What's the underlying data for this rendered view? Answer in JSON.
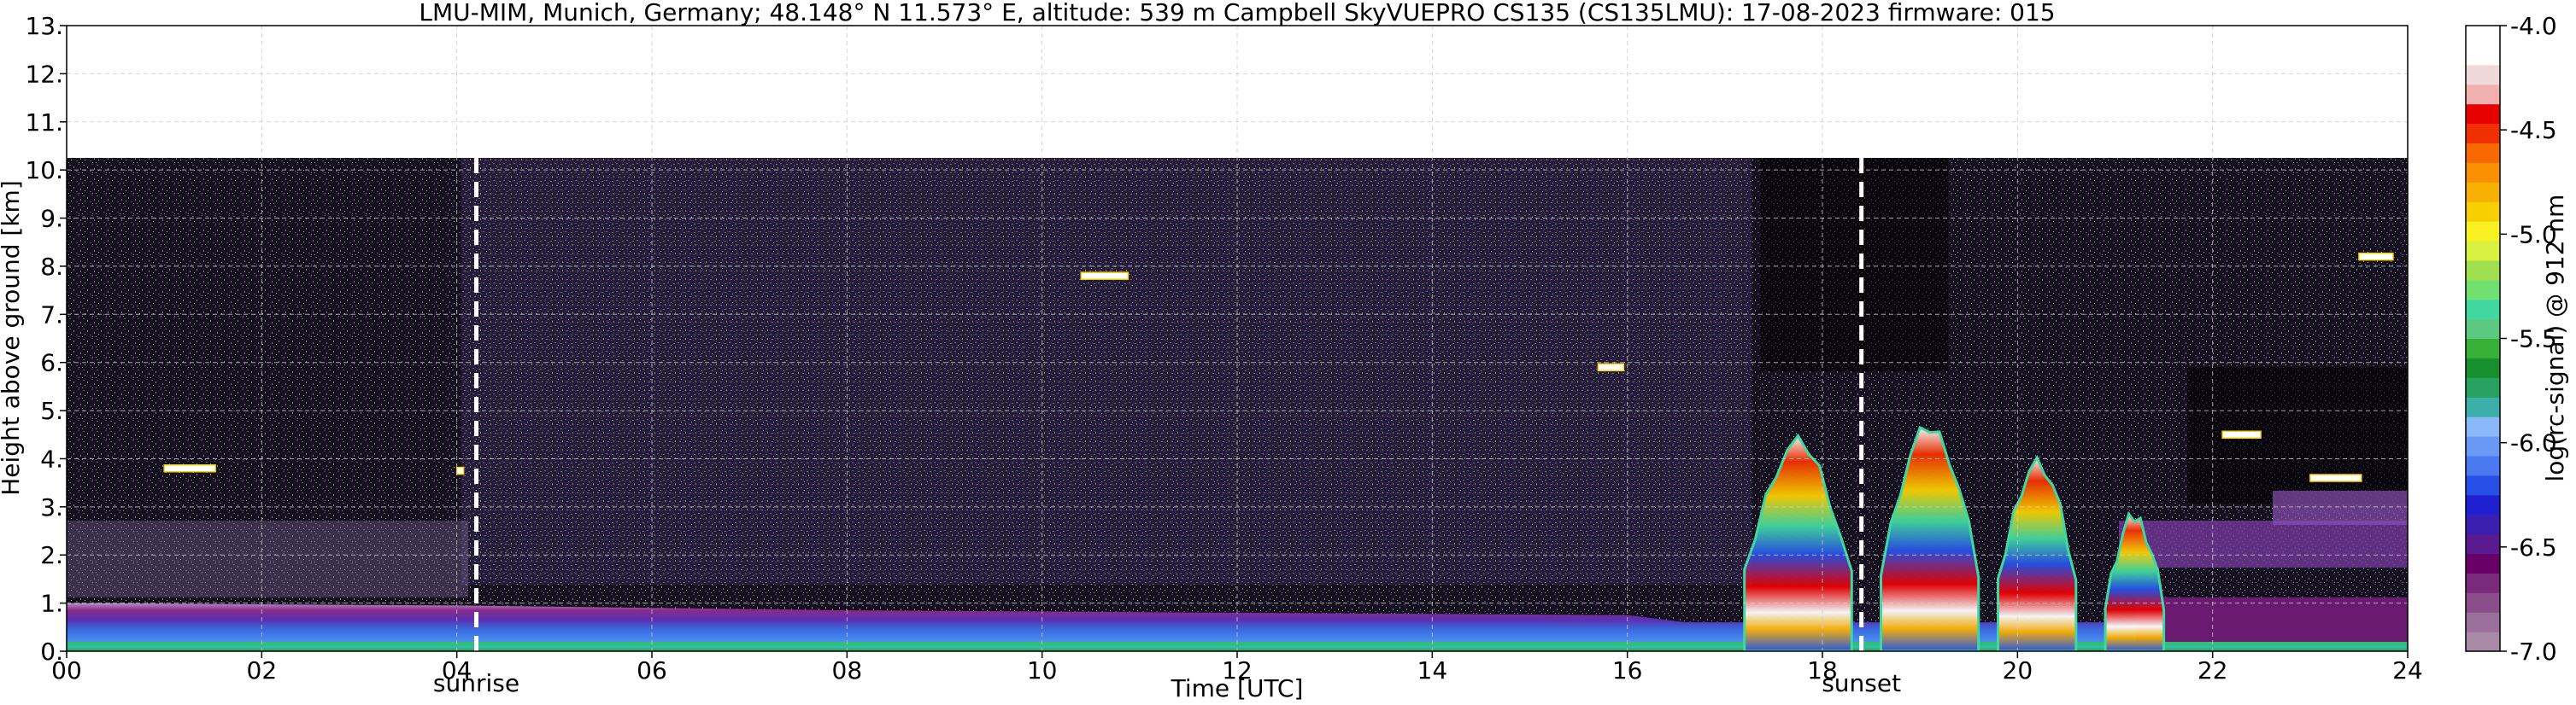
{
  "chart_data": {
    "type": "heatmap",
    "title": "LMU-MIM, Munich, Germany; 48.148° N 11.573° E, altitude: 539 m    Campbell SkyVUEPRO CS135 (CS135LMU): 17-08-2023    firmware: 015",
    "xlabel": "Time [UTC]",
    "ylabel": "Height above ground [km]",
    "xlim": [
      0,
      24
    ],
    "ylim": [
      0,
      13
    ],
    "x_tick_labels": [
      "00",
      "02",
      "04",
      "06",
      "08",
      "10",
      "12",
      "14",
      "16",
      "18",
      "20",
      "22",
      "24"
    ],
    "y_tick_labels": [
      "0.",
      "1.",
      "2.",
      "3.",
      "4.",
      "5.",
      "6.",
      "7.",
      "8.",
      "9.",
      "10.",
      "11.",
      "12.",
      "13."
    ],
    "data_top_km": 10.25,
    "grid": true,
    "events": [
      {
        "label": "sunrise",
        "x": 4.2
      },
      {
        "label": "sunset",
        "x": 18.4
      }
    ],
    "colorbar": {
      "label": "log(rc-signal) @ 912 nm",
      "range": [
        -7.0,
        -4.0
      ],
      "tick_labels": [
        "-4.0",
        "-4.5",
        "-5.0",
        "-5.5",
        "-6.0",
        "-6.5",
        "-7.0"
      ],
      "tick_values": [
        -4.0,
        -4.5,
        -5.0,
        -5.5,
        -6.0,
        -6.5,
        -7.0
      ],
      "colors": [
        "#a889a8",
        "#9a6f9a",
        "#8a4f8a",
        "#7a2a7a",
        "#680068",
        "#5a1a90",
        "#3a20b0",
        "#2020d0",
        "#2850e8",
        "#4a78f0",
        "#6a98f5",
        "#8ab8f8",
        "#3cb0a8",
        "#28a060",
        "#189030",
        "#38b038",
        "#5cc880",
        "#40d8a0",
        "#70e070",
        "#a0e050",
        "#d8f040",
        "#f8f020",
        "#f8d000",
        "#f8b000",
        "#f89000",
        "#f86800",
        "#f03000",
        "#e80000",
        "#f0b0b0",
        "#f0d8d8",
        "#ffffff",
        "#ffffff"
      ]
    },
    "layers": [
      {
        "name": "aerosol base",
        "x": [
          0,
          4,
          8,
          12,
          16,
          16.6,
          24
        ],
        "top_km": [
          1.0,
          0.95,
          0.85,
          0.8,
          0.75,
          0.6,
          0.6
        ]
      },
      {
        "name": "dense cloud segments",
        "x_ranges": [
          [
            17.2,
            18.3
          ],
          [
            18.6,
            19.6
          ],
          [
            19.8,
            20.6
          ],
          [
            20.9,
            21.5
          ]
        ],
        "top_km": [
          4.3,
          4.6,
          3.9,
          2.8
        ]
      }
    ]
  }
}
